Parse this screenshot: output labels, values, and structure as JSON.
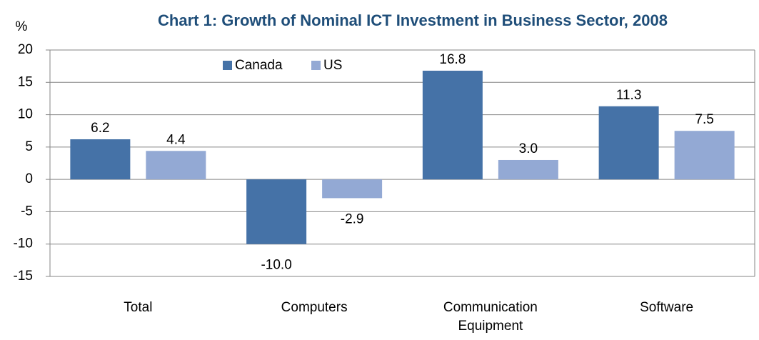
{
  "chart_data": {
    "type": "bar",
    "title": "Chart 1: Growth of Nominal ICT Investment in Business Sector, 2008",
    "y_label": "%",
    "categories": [
      "Total",
      "Computers",
      "Communication Equipment",
      "Software"
    ],
    "series": [
      {
        "name": "Canada",
        "color": "#4572a7",
        "values": [
          6.2,
          -10.0,
          16.8,
          11.3
        ],
        "value_labels": [
          "6.2",
          "-10.0",
          "16.8",
          "11.3"
        ]
      },
      {
        "name": "US",
        "color": "#93a9d4",
        "values": [
          4.4,
          -2.9,
          3.0,
          7.5
        ],
        "value_labels": [
          "4.4",
          "-2.9",
          "3.0",
          "7.5"
        ]
      }
    ],
    "ylim": [
      -15,
      20
    ],
    "yticks": [
      -15,
      -10,
      -5,
      0,
      5,
      10,
      15,
      20
    ],
    "grid": true,
    "legend": "top"
  }
}
